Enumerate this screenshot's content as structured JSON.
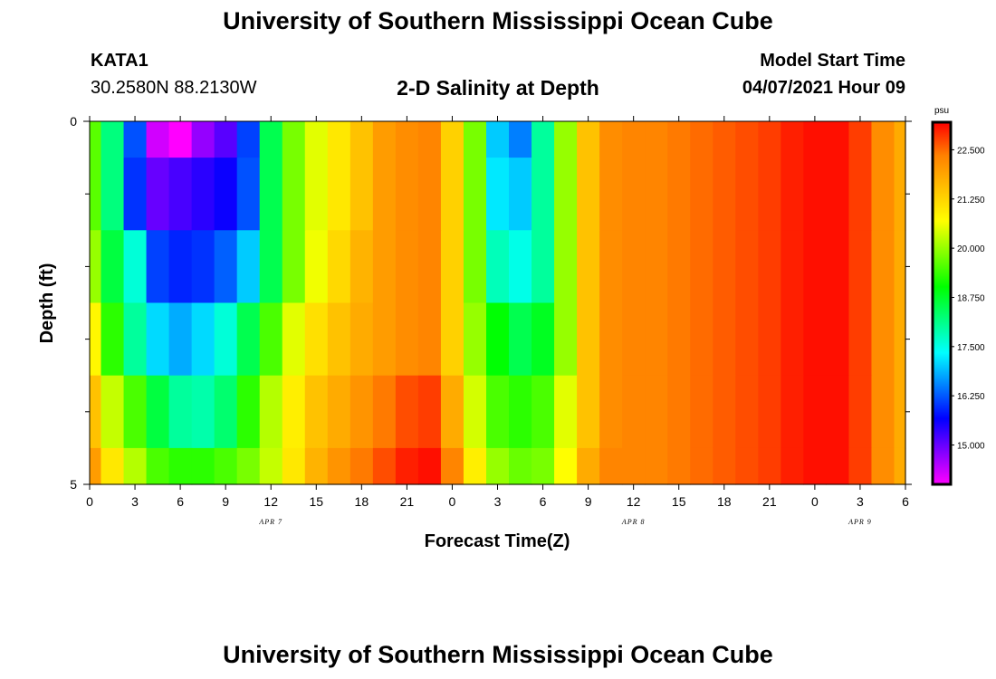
{
  "header": {
    "title": "University of Southern Mississippi Ocean Cube",
    "station_id": "KATA1",
    "coordinates": "30.2580N  88.2130W",
    "subtitle": "2-D Salinity at Depth",
    "model_label": "Model Start Time",
    "model_time": "04/07/2021 Hour 09",
    "footer_title": "University of Southern Mississippi Ocean Cube"
  },
  "colors": {
    "colormap": [
      "#ff00ff",
      "#8000ff",
      "#0000ff",
      "#0080ff",
      "#00ffff",
      "#00ff80",
      "#00ff00",
      "#80ff00",
      "#ffff00",
      "#ffc000",
      "#ff8000",
      "#ff0000"
    ]
  },
  "chart_data": {
    "type": "heatmap",
    "title": "2-D Salinity at Depth",
    "xlabel": "Forecast Time(Z)",
    "ylabel": "Depth (ft)",
    "x": [
      0,
      1.5,
      3,
      4.5,
      6,
      7.5,
      9,
      10.5,
      12,
      13.5,
      15,
      16.5,
      18,
      19.5,
      21,
      22.5,
      24,
      25.5,
      27,
      28.5,
      30,
      31.5,
      33,
      34.5,
      36,
      37.5,
      39,
      40.5,
      42,
      43.5,
      45,
      46.5,
      48,
      49.5,
      51,
      52.5,
      54
    ],
    "x_units": "hours since 2021-04-07 00Z",
    "depth_bins": [
      [
        0,
        0.5
      ],
      [
        0.5,
        1.5
      ],
      [
        1.5,
        2.5
      ],
      [
        2.5,
        3.5
      ],
      [
        3.5,
        4.5
      ],
      [
        4.5,
        5
      ]
    ],
    "values": [
      [
        19.6,
        18.2,
        16.2,
        14.3,
        14.0,
        14.7,
        15.1,
        16.1,
        18.5,
        19.8,
        20.5,
        21.0,
        21.5,
        22.0,
        22.2,
        22.3,
        21.3,
        19.8,
        17.0,
        16.5,
        18.0,
        20.0,
        21.5,
        22.2,
        22.3,
        22.3,
        22.4,
        22.5,
        22.6,
        22.7,
        22.8,
        23.0,
        23.1,
        23.1,
        22.8,
        22.2,
        21.8
      ],
      [
        19.6,
        18.2,
        16.0,
        15.0,
        15.2,
        15.4,
        15.6,
        16.2,
        18.5,
        19.8,
        20.5,
        21.0,
        21.5,
        22.0,
        22.2,
        22.3,
        21.3,
        19.8,
        17.2,
        17.0,
        18.0,
        20.0,
        21.5,
        22.2,
        22.3,
        22.3,
        22.4,
        22.5,
        22.6,
        22.7,
        22.8,
        23.0,
        23.1,
        23.1,
        22.8,
        22.2,
        21.8
      ],
      [
        20.0,
        18.6,
        17.6,
        16.1,
        15.9,
        16.0,
        16.3,
        17.0,
        18.5,
        19.8,
        20.6,
        21.2,
        21.7,
        22.0,
        22.2,
        22.3,
        21.3,
        19.8,
        17.8,
        17.5,
        18.0,
        20.0,
        21.5,
        22.2,
        22.3,
        22.3,
        22.4,
        22.5,
        22.6,
        22.7,
        22.8,
        23.0,
        23.1,
        23.1,
        22.8,
        22.2,
        21.8
      ],
      [
        20.8,
        19.3,
        18.0,
        17.1,
        16.8,
        17.1,
        17.6,
        18.5,
        19.5,
        20.5,
        21.1,
        21.5,
        21.8,
        22.0,
        22.2,
        22.3,
        21.3,
        20.0,
        19.0,
        18.5,
        18.8,
        20.0,
        21.5,
        22.2,
        22.3,
        22.3,
        22.4,
        22.5,
        22.6,
        22.7,
        22.8,
        23.0,
        23.1,
        23.1,
        22.8,
        22.2,
        21.8
      ],
      [
        21.5,
        20.3,
        19.5,
        18.6,
        18.0,
        17.9,
        18.3,
        19.3,
        20.2,
        20.9,
        21.5,
        21.8,
        22.1,
        22.4,
        22.7,
        22.8,
        21.8,
        20.4,
        19.5,
        19.3,
        19.5,
        20.5,
        21.5,
        22.2,
        22.3,
        22.3,
        22.4,
        22.5,
        22.6,
        22.7,
        22.8,
        23.0,
        23.1,
        23.1,
        22.8,
        22.2,
        21.8
      ],
      [
        22.0,
        21.0,
        20.2,
        19.5,
        19.3,
        19.3,
        19.5,
        19.8,
        20.3,
        21.0,
        21.7,
        22.1,
        22.4,
        22.7,
        23.0,
        23.1,
        22.3,
        20.9,
        20.0,
        19.7,
        19.8,
        20.7,
        21.8,
        22.3,
        22.3,
        22.3,
        22.4,
        22.5,
        22.6,
        22.7,
        22.8,
        23.0,
        23.1,
        23.1,
        22.8,
        22.2,
        21.8
      ]
    ],
    "x_tick_labels": [
      "0",
      "3",
      "6",
      "9",
      "12",
      "15",
      "18",
      "21",
      "0",
      "3",
      "6",
      "9",
      "12",
      "15",
      "18",
      "21",
      "0",
      "3",
      "6"
    ],
    "x_tick_hours": [
      0,
      3,
      6,
      9,
      12,
      15,
      18,
      21,
      24,
      27,
      30,
      33,
      36,
      39,
      42,
      45,
      48,
      51,
      54
    ],
    "date_labels": [
      {
        "label": "APR 7",
        "hour": 12
      },
      {
        "label": "APR 8",
        "hour": 36
      },
      {
        "label": "APR 9",
        "hour": 51
      }
    ],
    "y_tick_labels": [
      "0",
      "5"
    ],
    "y_tick_values": [
      0,
      5
    ],
    "ylim": [
      0,
      5
    ],
    "xlim": [
      0,
      54
    ],
    "colorbar": {
      "units": "psu",
      "ticks": [
        "22.500",
        "21.250",
        "20.000",
        "18.750",
        "17.500",
        "16.250",
        "15.000"
      ],
      "tick_values": [
        22.5,
        21.25,
        20.0,
        18.75,
        17.5,
        16.25,
        15.0
      ],
      "range": [
        14.0,
        23.2
      ]
    }
  }
}
